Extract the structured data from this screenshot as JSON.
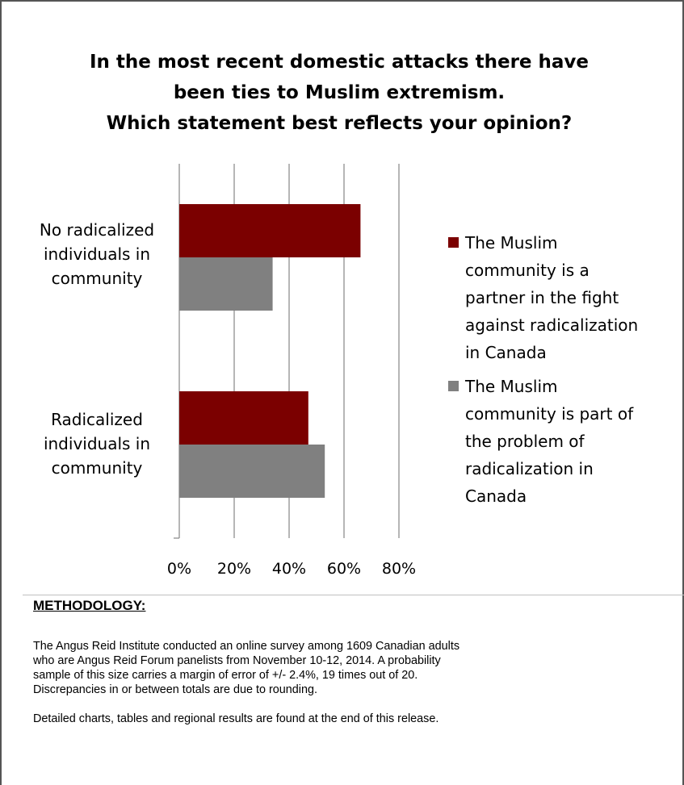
{
  "chart_data": {
    "type": "bar",
    "orientation": "horizontal",
    "title_lines": [
      "In the most recent domestic attacks there have",
      "been ties to Muslim extremism.",
      "Which statement best reflects your opinion?"
    ],
    "categories": [
      "No radicalized individuals in community",
      "Radicalized individuals in community"
    ],
    "category_label_lines": [
      [
        "No radicalized",
        "individuals in",
        "community"
      ],
      [
        "Radicalized",
        "individuals in",
        "community"
      ]
    ],
    "series": [
      {
        "name": "The Muslim community is a partner in the fight against radicalization in Canada",
        "legend_lines": [
          "The Muslim",
          "community is a",
          "partner in the fight",
          "against radicalization",
          "in Canada"
        ],
        "color": "#7b0000",
        "values": [
          66,
          47
        ]
      },
      {
        "name": "The Muslim community is part of the problem of radicalization in Canada",
        "legend_lines": [
          "The Muslim",
          "community is part of",
          "the problem of",
          "radicalization in",
          "Canada"
        ],
        "color": "#808080",
        "values": [
          34,
          53
        ]
      }
    ],
    "x_ticks": [
      "0%",
      "20%",
      "40%",
      "60%",
      "80%"
    ],
    "xlim": [
      0,
      80
    ],
    "grid": true,
    "legend_position": "right"
  },
  "methodology": {
    "heading": "METHODOLOGY:",
    "paragraph1_lines": [
      "The Angus Reid Institute conducted an online survey among 1609 Canadian adults",
      "who are Angus Reid Forum panelists from November 10-12, 2014. A probability",
      "sample of this size carries a margin of error of +/- 2.4%, 19 times out of 20.",
      "Discrepancies in or between totals are due to rounding."
    ],
    "paragraph2": "Detailed charts, tables and regional results are found at the end of this release."
  }
}
